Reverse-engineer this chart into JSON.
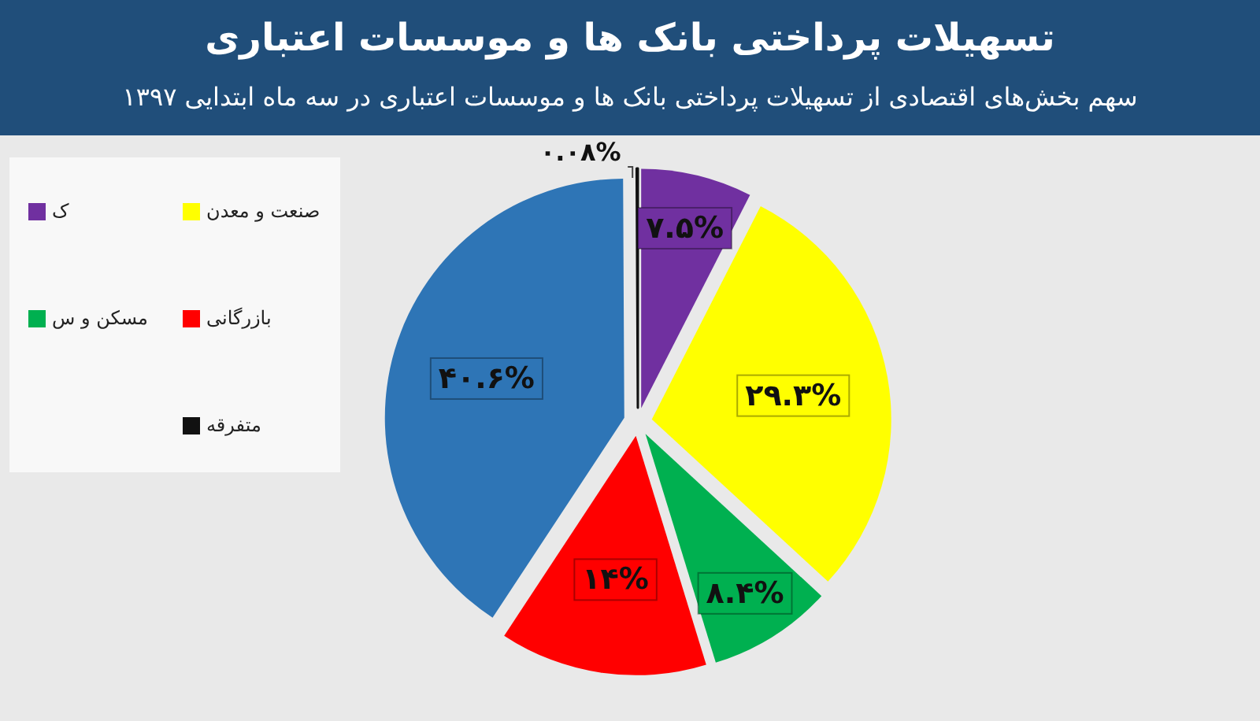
{
  "chart_data": {
    "type": "pie",
    "title": "تسهیلات پرداختی بانک ها و موسسات اعتباری",
    "subtitle": "سهم بخش‌های اقتصادی از تسهیلات پرداختی بانک ها و موسسات اعتباری در سه ماه ابتدایی ۱۳۹۷",
    "categories": [
      "ک",
      "صنعت و معدن",
      "مسکن و س",
      "بازرگانی",
      null,
      "متفرقه"
    ],
    "values": [
      7.5,
      29.3,
      8.4,
      14,
      40.6,
      0.08
    ],
    "value_labels": [
      "۷.۵%",
      "۲۹.۳%",
      "۸.۴%",
      "۱۴%",
      "۴۰.۶%",
      "۰.۰۸%"
    ],
    "colors": [
      "#7030a0",
      "#ffff00",
      "#00b050",
      "#ff0000",
      "#2e75b6",
      "#111111"
    ],
    "legend": "left"
  }
}
